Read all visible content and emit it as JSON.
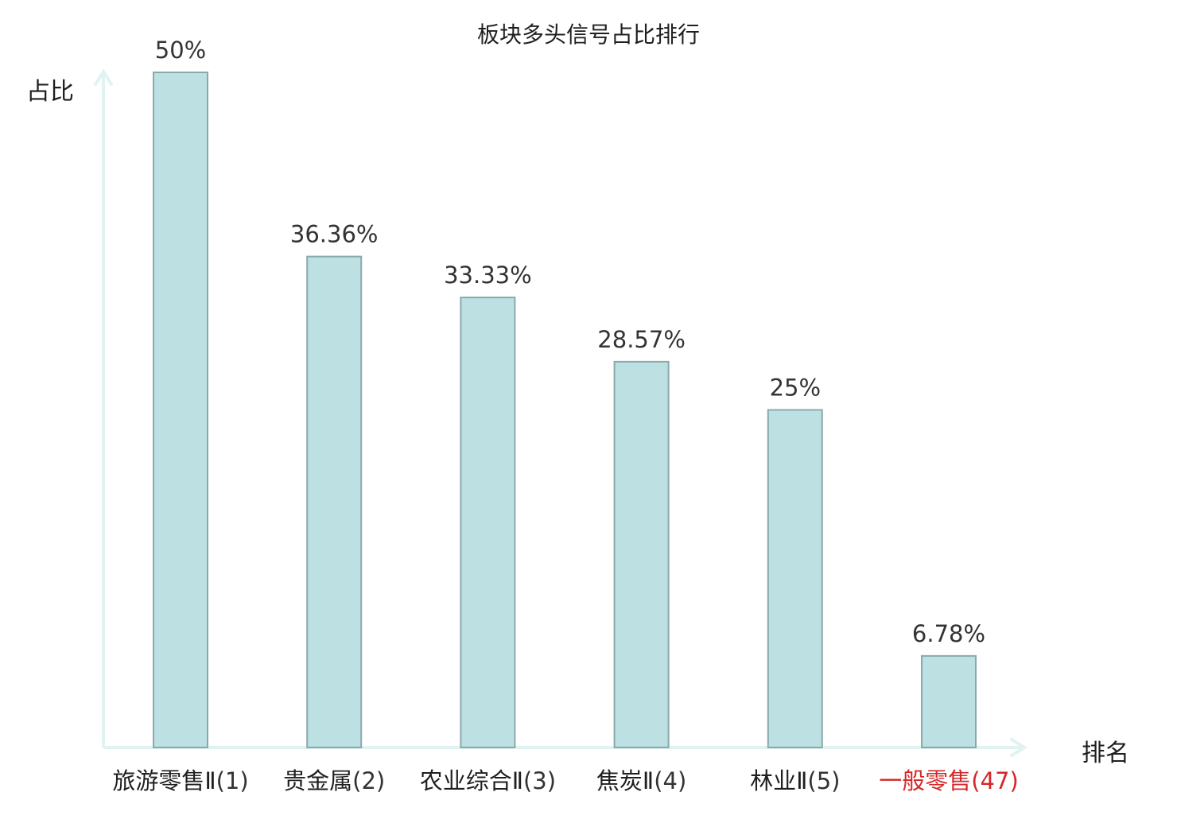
{
  "chart_data": {
    "type": "bar",
    "title": "板块多头信号占比排行",
    "ylabel": "占比",
    "xlabel": "排名",
    "ylim": [
      0,
      50
    ],
    "grid": false,
    "legend": "none",
    "categories": [
      {
        "name": "旅游零售Ⅱ",
        "rank": "(1)",
        "highlight": false
      },
      {
        "name": "贵金属",
        "rank": "(2)",
        "highlight": false
      },
      {
        "name": "农业综合Ⅱ",
        "rank": "(3)",
        "highlight": false
      },
      {
        "name": "焦炭Ⅱ",
        "rank": "(4)",
        "highlight": false
      },
      {
        "name": "林业Ⅱ",
        "rank": "(5)",
        "highlight": false
      },
      {
        "name": "一般零售",
        "rank": "(47)",
        "highlight": true
      }
    ],
    "values": [
      50,
      36.36,
      33.33,
      28.57,
      25,
      6.78
    ],
    "value_labels": [
      "50%",
      "36.36%",
      "33.33%",
      "28.57%",
      "25%",
      "6.78%"
    ],
    "colors": {
      "bar_fill": "#bde0e3",
      "bar_stroke": "#8aa9ab",
      "axis": "#e0f3f0",
      "highlight_text": "#d62728"
    }
  }
}
